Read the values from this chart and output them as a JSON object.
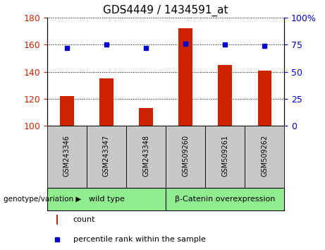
{
  "title": "GDS4449 / 1434591_at",
  "samples": [
    "GSM243346",
    "GSM243347",
    "GSM243348",
    "GSM509260",
    "GSM509261",
    "GSM509262"
  ],
  "counts": [
    122,
    135,
    113,
    172,
    145,
    141
  ],
  "percentiles": [
    72,
    75,
    72,
    76,
    75,
    74
  ],
  "ylim_left": [
    100,
    180
  ],
  "ylim_right": [
    0,
    100
  ],
  "yticks_left": [
    100,
    120,
    140,
    160,
    180
  ],
  "yticks_right": [
    0,
    25,
    50,
    75,
    100
  ],
  "ytick_labels_right": [
    "0",
    "25",
    "50",
    "75",
    "100%"
  ],
  "bar_color": "#cc2200",
  "dot_color": "#0000cc",
  "grid_color": "#000000",
  "groups": [
    {
      "label": "wild type",
      "indices": [
        0,
        1,
        2
      ],
      "color": "#90ee90"
    },
    {
      "label": "β-Catenin overexpression",
      "indices": [
        3,
        4,
        5
      ],
      "color": "#90ee90"
    }
  ],
  "group_row_label": "genotype/variation",
  "legend_count_label": "count",
  "legend_pct_label": "percentile rank within the sample",
  "tick_label_bg": "#c8c8c8",
  "plot_bg": "#ffffff",
  "baseline": 100,
  "bar_width": 0.35
}
